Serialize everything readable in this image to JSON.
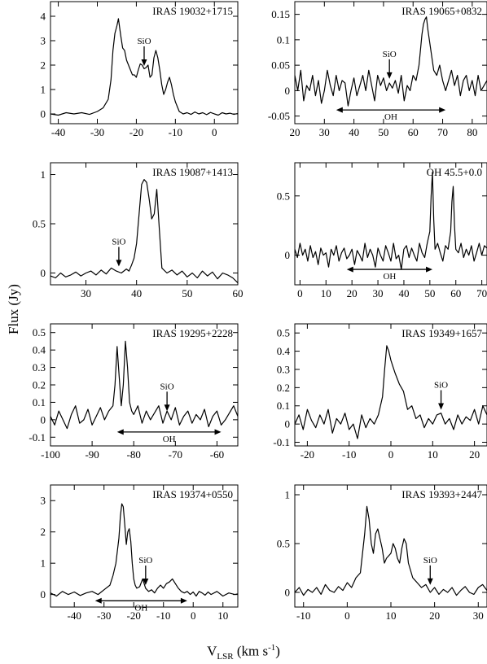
{
  "figure": {
    "ylabel": "Flux (Jy)",
    "xlabel_main": "V",
    "xlabel_sub": "LSR",
    "xlabel_units_pre": " (km s",
    "xlabel_units_sup": "-1",
    "xlabel_units_post": ")"
  },
  "chart_data": [
    {
      "type": "line",
      "title": "IRAS 19032+1715",
      "xlim": [
        -42,
        6
      ],
      "ylim": [
        -0.4,
        4.6
      ],
      "xticks": [
        -40,
        -30,
        -20,
        -10,
        0
      ],
      "yticks": [
        0,
        1,
        2,
        3,
        4
      ],
      "x": [
        -42,
        -40,
        -38,
        -36,
        -34,
        -32,
        -30,
        -28.5,
        -27.2,
        -26.5,
        -26,
        -25.5,
        -25,
        -24.6,
        -24,
        -23.5,
        -23,
        -22.5,
        -22,
        -21.5,
        -21,
        -20.5,
        -20,
        -19.5,
        -19,
        -18.5,
        -18,
        -17.5,
        -17,
        -16.5,
        -16,
        -15.5,
        -15,
        -14.5,
        -14,
        -13.5,
        -13,
        -12.5,
        -12,
        -11.5,
        -11,
        -10.5,
        -10,
        -9.5,
        -9,
        -8.5,
        -8,
        -7,
        -6,
        -5,
        -4,
        -3,
        -2,
        -1,
        0,
        1,
        2,
        3,
        4,
        5,
        6
      ],
      "y": [
        0.0,
        -0.05,
        0.05,
        0.0,
        0.05,
        -0.02,
        0.1,
        0.25,
        0.6,
        1.4,
        2.6,
        3.3,
        3.6,
        3.9,
        3.2,
        2.7,
        2.6,
        2.2,
        2.0,
        1.8,
        1.6,
        1.6,
        1.5,
        1.8,
        2.05,
        2.0,
        1.85,
        1.9,
        2.0,
        1.5,
        1.6,
        2.3,
        2.6,
        2.3,
        1.8,
        1.2,
        0.8,
        1.0,
        1.3,
        1.5,
        1.2,
        0.8,
        0.5,
        0.3,
        0.1,
        0.05,
        0.0,
        0.05,
        -0.02,
        0.08,
        0.0,
        0.05,
        -0.03,
        0.06,
        0.0,
        -0.05,
        0.05,
        0.0,
        0.03,
        -0.02,
        0.02
      ],
      "markers": [
        {
          "label": "SiO",
          "x": -18,
          "tip_y": 1.9
        }
      ],
      "ranges": []
    },
    {
      "type": "line",
      "title": "IRAS 19065+0832",
      "xlim": [
        20,
        85
      ],
      "ylim": [
        -0.065,
        0.175
      ],
      "xticks": [
        20,
        30,
        40,
        50,
        60,
        70,
        80
      ],
      "yticks": [
        -0.05,
        0,
        0.05,
        0.1,
        0.15
      ],
      "x": [
        20,
        21,
        22,
        23,
        24,
        25,
        26,
        27,
        28,
        29,
        30,
        31,
        32,
        33,
        34,
        35,
        36,
        37,
        38,
        39,
        40,
        41,
        42,
        43,
        44,
        45,
        46,
        47,
        48,
        49,
        50,
        51,
        52,
        53,
        54,
        55,
        56,
        57,
        58,
        59,
        60,
        61,
        62,
        62.5,
        63,
        63.5,
        64,
        64.5,
        65,
        66,
        67,
        68,
        69,
        70,
        71,
        72,
        73,
        74,
        75,
        76,
        77,
        78,
        79,
        80,
        81,
        82,
        83,
        84,
        85
      ],
      "y": [
        0.03,
        0.0,
        0.04,
        -0.02,
        0.01,
        0.0,
        0.03,
        -0.01,
        0.02,
        -0.025,
        0.0,
        0.04,
        0.01,
        -0.01,
        0.03,
        0.0,
        0.02,
        0.015,
        -0.03,
        0.0,
        0.025,
        -0.01,
        0.01,
        0.03,
        0.0,
        0.04,
        0.01,
        -0.02,
        0.03,
        0.01,
        0.025,
        0.0,
        0.015,
        0.005,
        0.02,
        -0.005,
        0.03,
        -0.02,
        0.01,
        0.0,
        0.03,
        0.02,
        0.05,
        0.08,
        0.11,
        0.13,
        0.14,
        0.145,
        0.12,
        0.08,
        0.04,
        0.03,
        0.05,
        0.02,
        0.0,
        0.02,
        0.04,
        0.01,
        0.03,
        -0.01,
        0.02,
        0.03,
        0.0,
        0.02,
        -0.01,
        0.03,
        0.0,
        0.01,
        0.02
      ],
      "markers": [
        {
          "label": "SiO",
          "x": 52,
          "tip_y": 0.02
        }
      ],
      "ranges": [
        {
          "label": "OH",
          "from": 34,
          "to": 71,
          "y": -0.038
        }
      ]
    },
    {
      "type": "line",
      "title": "IRAS 19087+1413",
      "xlim": [
        23,
        60
      ],
      "ylim": [
        -0.12,
        1.12
      ],
      "xticks": [
        30,
        40,
        50,
        60
      ],
      "yticks": [
        0,
        0.5,
        1
      ],
      "x": [
        23,
        24,
        25,
        26,
        27,
        28,
        29,
        30,
        31,
        32,
        33,
        34,
        35,
        36,
        37,
        38,
        38.5,
        39,
        39.5,
        40,
        40.5,
        41,
        41.5,
        42,
        42.5,
        43,
        43.5,
        44,
        44.5,
        45,
        46,
        47,
        48,
        49,
        50,
        51,
        52,
        53,
        54,
        55,
        56,
        57,
        58,
        59,
        60
      ],
      "y": [
        -0.03,
        -0.05,
        0.0,
        -0.04,
        -0.02,
        0.01,
        -0.03,
        0.0,
        0.02,
        -0.02,
        0.03,
        -0.01,
        0.05,
        0.02,
        0.0,
        0.04,
        0.02,
        0.08,
        0.15,
        0.3,
        0.6,
        0.9,
        0.95,
        0.92,
        0.75,
        0.55,
        0.6,
        0.85,
        0.45,
        0.05,
        0.0,
        0.03,
        -0.02,
        0.02,
        -0.04,
        0.0,
        -0.05,
        0.02,
        -0.03,
        0.01,
        -0.06,
        0.0,
        -0.02,
        -0.05,
        -0.1
      ],
      "markers": [
        {
          "label": "SiO",
          "x": 36.5,
          "tip_y": 0.05
        }
      ],
      "ranges": []
    },
    {
      "type": "line",
      "title": "OH 45.5+0.0",
      "xlim": [
        -2,
        72
      ],
      "ylim": [
        -0.25,
        0.78
      ],
      "xticks": [
        0,
        10,
        20,
        30,
        40,
        50,
        60,
        70
      ],
      "yticks": [
        0,
        0.5
      ],
      "x": [
        -2,
        -1,
        0,
        1,
        2,
        3,
        4,
        5,
        6,
        7,
        8,
        9,
        10,
        11,
        12,
        13,
        14,
        15,
        16,
        17,
        18,
        19,
        20,
        21,
        22,
        23,
        24,
        25,
        26,
        27,
        28,
        29,
        30,
        31,
        32,
        33,
        34,
        35,
        36,
        37,
        38,
        39,
        40,
        41,
        42,
        43,
        44,
        45,
        46,
        47,
        48,
        49,
        50,
        50.5,
        51,
        51.5,
        52,
        53,
        54,
        55,
        56,
        57,
        58,
        58.5,
        59,
        59.5,
        60,
        61,
        62,
        63,
        64,
        65,
        66,
        67,
        68,
        69,
        70,
        71,
        72
      ],
      "y": [
        0.05,
        -0.02,
        0.1,
        0.0,
        0.05,
        -0.05,
        0.08,
        -0.02,
        0.03,
        -0.08,
        0.06,
        0.0,
        0.02,
        -0.1,
        0.05,
        0.0,
        0.08,
        -0.05,
        0.02,
        0.06,
        -0.03,
        0.0,
        0.05,
        -0.08,
        0.04,
        0.0,
        -0.05,
        0.1,
        -0.02,
        0.05,
        0.0,
        -0.1,
        0.06,
        0.0,
        -0.05,
        0.08,
        0.02,
        -0.05,
        0.1,
        -0.03,
        0.0,
        -0.12,
        0.05,
        0.08,
        -0.02,
        0.06,
        0.0,
        -0.05,
        0.1,
        0.02,
        -0.02,
        0.1,
        0.2,
        0.5,
        0.7,
        0.3,
        0.05,
        0.1,
        0.02,
        -0.05,
        0.08,
        0.05,
        0.2,
        0.45,
        0.58,
        0.25,
        0.05,
        0.02,
        0.1,
        -0.02,
        0.05,
        0.0,
        0.08,
        -0.05,
        0.02,
        0.1,
        0.0,
        0.08,
        0.06
      ],
      "markers": [],
      "ranges": [
        {
          "label": "OH",
          "from": 18,
          "to": 51,
          "y": -0.12
        }
      ]
    },
    {
      "type": "line",
      "title": "IRAS 19295+2228",
      "xlim": [
        -100,
        -55
      ],
      "ylim": [
        -0.15,
        0.55
      ],
      "xticks": [
        -100,
        -90,
        -80,
        -70,
        -60,
        -50
      ],
      "yticks": [
        -0.1,
        0,
        0.1,
        0.2,
        0.3,
        0.4,
        0.5
      ],
      "x": [
        -100,
        -99,
        -98,
        -97,
        -96,
        -95,
        -94,
        -93,
        -92,
        -91,
        -90,
        -89,
        -88,
        -87,
        -86,
        -85,
        -84.5,
        -84,
        -83.5,
        -83,
        -82.5,
        -82,
        -81.5,
        -81,
        -80.5,
        -80,
        -79,
        -78,
        -77,
        -76,
        -75,
        -74,
        -73,
        -72,
        -71,
        -70,
        -69,
        -68,
        -67,
        -66,
        -65,
        -64,
        -63,
        -62,
        -61,
        -60,
        -59,
        -58,
        -57,
        -56,
        -55
      ],
      "y": [
        0.02,
        -0.03,
        0.05,
        0.0,
        -0.05,
        0.03,
        0.08,
        -0.02,
        0.0,
        0.06,
        -0.03,
        0.02,
        0.07,
        0.0,
        0.05,
        0.08,
        0.2,
        0.42,
        0.25,
        0.08,
        0.2,
        0.45,
        0.3,
        0.1,
        0.05,
        0.03,
        0.08,
        -0.02,
        0.05,
        0.0,
        0.04,
        0.08,
        -0.02,
        0.05,
        0.0,
        0.07,
        -0.03,
        0.02,
        0.05,
        -0.02,
        0.03,
        0.0,
        0.06,
        -0.04,
        0.02,
        0.05,
        -0.03,
        0.0,
        0.04,
        0.08,
        0.02
      ],
      "markers": [
        {
          "label": "SiO",
          "x": -72,
          "tip_y": 0.04
        }
      ],
      "ranges": [
        {
          "label": "OH",
          "from": -84,
          "to": -59,
          "y": -0.07
        }
      ]
    },
    {
      "type": "line",
      "title": "IRAS 19349+1657",
      "xlim": [
        -23,
        23
      ],
      "ylim": [
        -0.12,
        0.55
      ],
      "xticks": [
        -20,
        -10,
        0,
        10,
        20
      ],
      "yticks": [
        -0.1,
        0,
        0.1,
        0.2,
        0.3,
        0.4,
        0.5
      ],
      "x": [
        -23,
        -22,
        -21,
        -20,
        -19,
        -18,
        -17,
        -16,
        -15,
        -14,
        -13,
        -12,
        -11,
        -10,
        -9,
        -8,
        -7,
        -6,
        -5,
        -4,
        -3,
        -2,
        -1.5,
        -1,
        -0.5,
        0,
        1,
        2,
        3,
        4,
        5,
        6,
        7,
        8,
        9,
        10,
        11,
        12,
        13,
        14,
        15,
        16,
        17,
        18,
        19,
        20,
        21,
        22,
        23
      ],
      "y": [
        0.0,
        0.05,
        -0.03,
        0.08,
        0.02,
        -0.02,
        0.05,
        0.0,
        0.08,
        -0.05,
        0.03,
        0.0,
        0.06,
        -0.03,
        0.0,
        -0.08,
        0.05,
        -0.02,
        0.03,
        0.0,
        0.05,
        0.15,
        0.3,
        0.43,
        0.4,
        0.35,
        0.28,
        0.22,
        0.18,
        0.08,
        0.1,
        0.03,
        0.05,
        -0.02,
        0.03,
        0.0,
        0.05,
        0.06,
        0.0,
        0.03,
        -0.03,
        0.05,
        0.0,
        0.04,
        0.02,
        0.08,
        0.0,
        0.1,
        0.05
      ],
      "markers": [
        {
          "label": "SiO",
          "x": 12,
          "tip_y": 0.07
        }
      ],
      "ranges": []
    },
    {
      "type": "line",
      "title": "IRAS 19374+0550",
      "xlim": [
        -48,
        15
      ],
      "ylim": [
        -0.4,
        3.5
      ],
      "xticks": [
        -40,
        -30,
        -20,
        -10,
        0,
        10
      ],
      "yticks": [
        0,
        1,
        2,
        3
      ],
      "x": [
        -48,
        -46,
        -44,
        -42,
        -40,
        -38,
        -36,
        -34,
        -32,
        -30,
        -28,
        -27,
        -26,
        -25,
        -24.5,
        -24,
        -23.5,
        -23,
        -22.5,
        -22,
        -21.5,
        -21,
        -20.5,
        -20,
        -19.5,
        -19,
        -18,
        -17,
        -16,
        -15,
        -14,
        -13,
        -12,
        -11,
        -10,
        -9,
        -8,
        -7,
        -6,
        -5,
        -4,
        -3,
        -2,
        -1,
        0,
        1,
        2,
        3,
        4,
        5,
        6,
        8,
        10,
        12,
        14,
        15
      ],
      "y": [
        0.05,
        -0.05,
        0.1,
        0.0,
        0.08,
        -0.03,
        0.05,
        0.1,
        0.0,
        0.15,
        0.3,
        0.6,
        1.0,
        1.8,
        2.5,
        2.9,
        2.8,
        2.2,
        1.6,
        2.0,
        2.1,
        1.7,
        1.0,
        0.5,
        0.3,
        0.2,
        0.25,
        0.5,
        0.2,
        0.1,
        0.15,
        0.05,
        0.2,
        0.3,
        0.2,
        0.35,
        0.4,
        0.5,
        0.35,
        0.2,
        0.1,
        0.05,
        0.1,
        0.0,
        0.08,
        -0.05,
        0.1,
        0.05,
        -0.02,
        0.08,
        0.0,
        0.1,
        -0.05,
        0.05,
        0.0,
        0.02
      ],
      "markers": [
        {
          "label": "SiO",
          "x": -16,
          "tip_y": 0.25
        }
      ],
      "ranges": [
        {
          "label": "OH",
          "from": -33,
          "to": -2,
          "y": -0.2
        }
      ]
    },
    {
      "type": "line",
      "title": "IRAS 19393+2447",
      "xlim": [
        -12,
        32
      ],
      "ylim": [
        -0.15,
        1.1
      ],
      "xticks": [
        -10,
        0,
        10,
        20,
        30
      ],
      "yticks": [
        0,
        0.5,
        1
      ],
      "x": [
        -12,
        -11,
        -10,
        -9,
        -8,
        -7,
        -6,
        -5,
        -4,
        -3,
        -2,
        -1,
        0,
        1,
        2,
        3,
        4,
        4.5,
        5,
        5.5,
        6,
        6.5,
        7,
        7.5,
        8,
        8.5,
        9,
        10,
        10.5,
        11,
        11.5,
        12,
        12.5,
        13,
        13.5,
        14,
        15,
        16,
        17,
        18,
        19,
        20,
        21,
        22,
        23,
        24,
        25,
        26,
        27,
        28,
        29,
        30,
        31,
        32
      ],
      "y": [
        0.0,
        0.05,
        -0.03,
        0.03,
        0.0,
        0.05,
        -0.02,
        0.08,
        0.02,
        0.0,
        0.06,
        0.02,
        0.1,
        0.05,
        0.15,
        0.2,
        0.6,
        0.88,
        0.75,
        0.5,
        0.4,
        0.6,
        0.65,
        0.55,
        0.45,
        0.3,
        0.35,
        0.4,
        0.5,
        0.45,
        0.35,
        0.3,
        0.45,
        0.55,
        0.5,
        0.3,
        0.15,
        0.1,
        0.05,
        0.08,
        0.0,
        0.05,
        -0.02,
        0.03,
        0.0,
        0.05,
        -0.03,
        0.02,
        0.06,
        0.0,
        -0.02,
        0.05,
        0.08,
        0.02
      ],
      "markers": [
        {
          "label": "SiO",
          "x": 19,
          "tip_y": 0.06
        }
      ],
      "ranges": []
    }
  ]
}
